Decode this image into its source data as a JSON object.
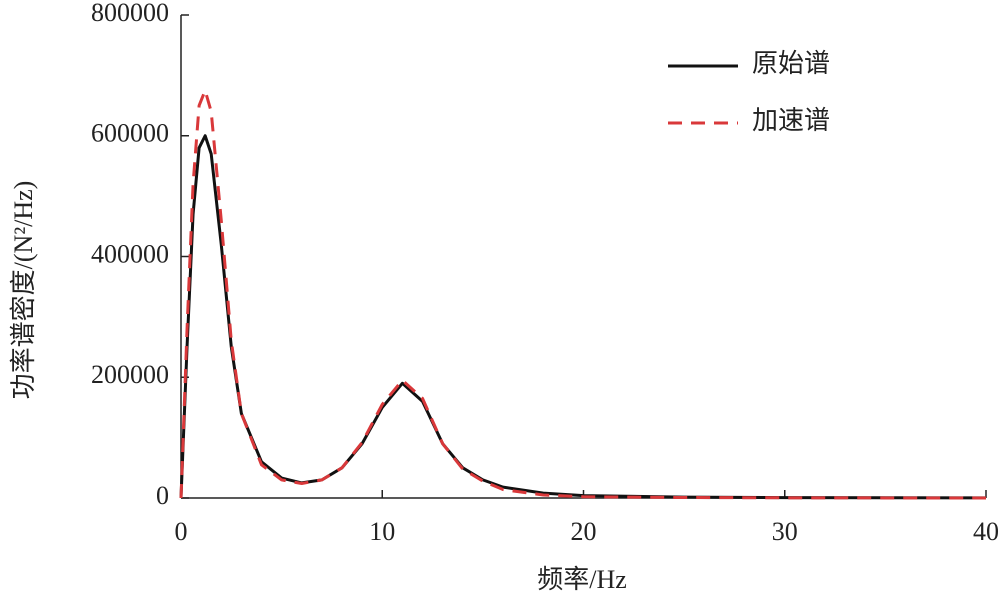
{
  "chart_data": {
    "type": "line",
    "xlabel": "频率/Hz",
    "ylabel": "功率谱密度/(N²/Hz)",
    "x": [
      0,
      0.3,
      0.6,
      0.9,
      1.2,
      1.5,
      2,
      2.5,
      3,
      4,
      5,
      6,
      7,
      8,
      9,
      10,
      11,
      12,
      13,
      14,
      15,
      16,
      18,
      20,
      25,
      30,
      35,
      40
    ],
    "series": [
      {
        "name": "原始谱",
        "color": "#111111",
        "style": "solid",
        "values": [
          0,
          250000,
          470000,
          580000,
          600000,
          570000,
          420000,
          250000,
          140000,
          60000,
          33000,
          25000,
          30000,
          50000,
          90000,
          150000,
          190000,
          160000,
          90000,
          50000,
          30000,
          18000,
          8000,
          4000,
          1500,
          700,
          400,
          200
        ]
      },
      {
        "name": "加速谱",
        "color": "#d9383a",
        "style": "dashed",
        "values": [
          0,
          280000,
          520000,
          650000,
          675000,
          640000,
          460000,
          260000,
          140000,
          55000,
          30000,
          24000,
          30000,
          50000,
          92000,
          155000,
          195000,
          165000,
          90000,
          48000,
          28000,
          14000,
          5000,
          2000,
          800,
          300,
          100,
          50
        ]
      }
    ],
    "xlim": [
      0,
      40
    ],
    "xticks": [
      0,
      10,
      20,
      30,
      40
    ],
    "ylim": [
      0,
      800000
    ],
    "yticks": [
      0,
      200000,
      400000,
      600000,
      800000
    ],
    "grid": false,
    "legend": "upper right"
  }
}
